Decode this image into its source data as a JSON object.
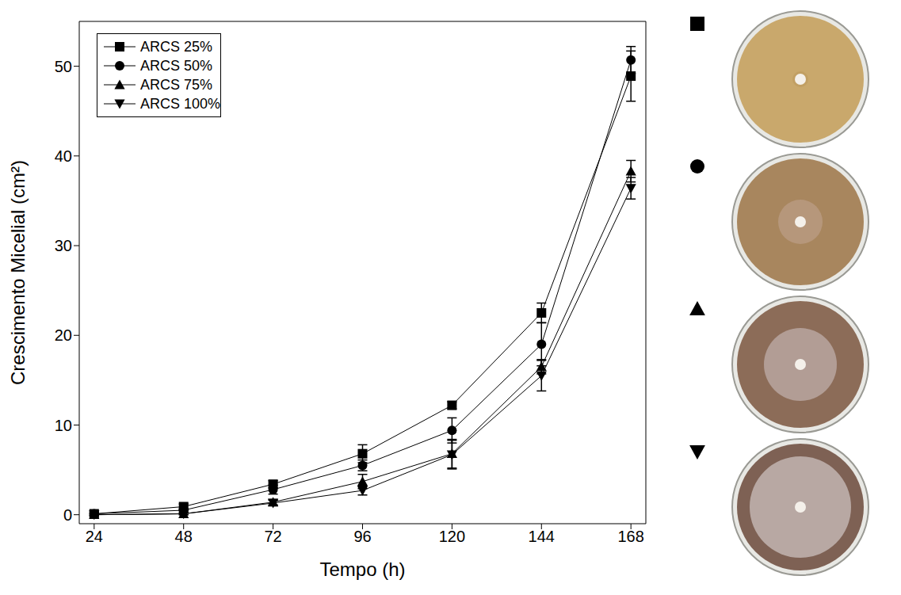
{
  "chart_data": {
    "type": "line",
    "x_label": "Tempo (h)",
    "y_label": "Crescimento Micelial (cm²)",
    "x": [
      24,
      48,
      72,
      96,
      120,
      144,
      168
    ],
    "series": [
      {
        "name": "ARCS 25%",
        "color": "#000000",
        "marker": "square",
        "values": [
          0.1,
          0.9,
          3.4,
          6.8,
          12.2,
          22.5,
          48.9
        ],
        "errors": [
          0.2,
          0.3,
          0.4,
          1.0,
          0.4,
          1.1,
          2.8
        ]
      },
      {
        "name": "ARCS 50%",
        "color": "#000000",
        "marker": "circle",
        "values": [
          0.1,
          0.5,
          2.8,
          5.5,
          9.4,
          19.0,
          50.7
        ],
        "errors": [
          0.1,
          0.2,
          0.5,
          0.6,
          1.4,
          2.4,
          1.5
        ]
      },
      {
        "name": "ARCS 75%",
        "color": "#000000",
        "marker": "triangle",
        "values": [
          0.0,
          0.1,
          1.4,
          3.7,
          6.8,
          16.5,
          38.3
        ],
        "errors": [
          0.1,
          0.1,
          0.3,
          0.8,
          1.6,
          0.8,
          1.2
        ]
      },
      {
        "name": "ARCS 100%",
        "color": "#000000",
        "marker": "triangle-down",
        "values": [
          0.0,
          0.1,
          1.3,
          2.7,
          6.7,
          15.5,
          36.4
        ],
        "errors": [
          0.1,
          0.1,
          0.3,
          0.5,
          1.6,
          1.7,
          1.2
        ]
      }
    ],
    "xlim": [
      20,
      172
    ],
    "ylim": [
      -1,
      55
    ],
    "xticks": [
      24,
      48,
      72,
      96,
      120,
      144,
      168
    ],
    "yticks": [
      0,
      10,
      20,
      30,
      40,
      50
    ],
    "grid": false,
    "legend": "upper left"
  }
}
